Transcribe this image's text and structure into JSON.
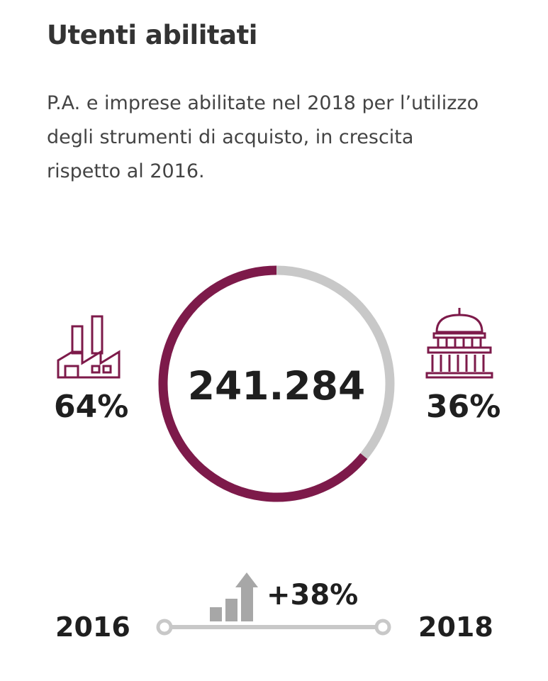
{
  "header": {
    "title": "Utenti abilitati",
    "subtitle_lines": [
      "P.A. e imprese abilitate nel 2018 per l’utilizzo",
      "degli strumenti di acquisto, in crescita",
      "rispetto al 2016."
    ]
  },
  "total_label": "241.284",
  "left": {
    "icon": "factory-icon",
    "percent_label": "64%"
  },
  "right": {
    "icon": "government-building-icon",
    "percent_label": "36%"
  },
  "timeline": {
    "start_year": "2016",
    "end_year": "2018",
    "growth_label": "+38%",
    "icon": "growth-chart-arrow-icon"
  },
  "colors": {
    "imprese": "#7d1a4a",
    "pa": "#c8c8c8",
    "timeline": "#c8c8c8",
    "text": "#1f1f1f"
  },
  "chart_data": {
    "type": "pie",
    "variant": "donut",
    "total": 241284,
    "categories": [
      "factory-icon",
      "government-building-icon"
    ],
    "values": [
      64,
      36
    ],
    "colors": [
      "#7d1a4a",
      "#c8c8c8"
    ],
    "title": "Utenti abilitati"
  }
}
